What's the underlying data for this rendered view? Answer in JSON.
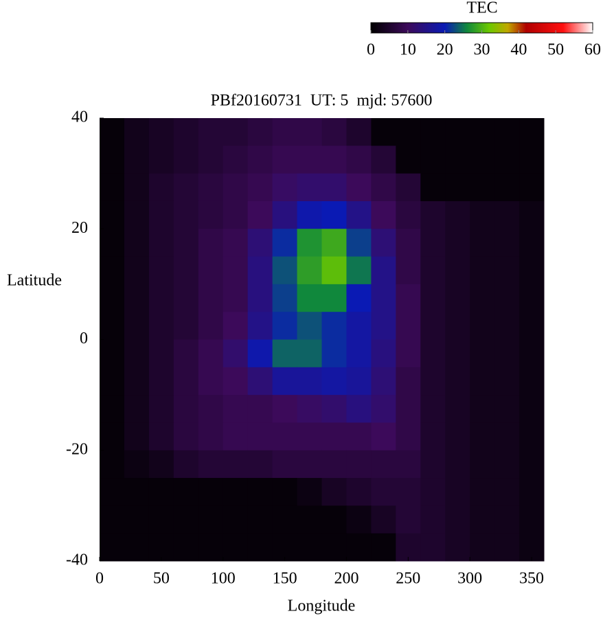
{
  "chart_data": {
    "type": "heatmap",
    "title": "PBf20160731  UT: 5  mjd: 57600",
    "xlabel": "Longitude",
    "ylabel": "Latitude",
    "x": [
      10,
      30,
      50,
      70,
      90,
      110,
      130,
      150,
      170,
      190,
      210,
      230,
      250,
      270,
      290,
      310,
      330,
      350
    ],
    "y": [
      37.5,
      32.5,
      27.5,
      22.5,
      17.5,
      12.5,
      7.5,
      2.5,
      -2.5,
      -7.5,
      -12.5,
      -17.5,
      -22.5,
      -27.5,
      -32.5,
      -37.5
    ],
    "values": [
      [
        1,
        3,
        4,
        5,
        6,
        6,
        7,
        8,
        8,
        7,
        5,
        1,
        1,
        1,
        1,
        1,
        1,
        1
      ],
      [
        1,
        3,
        4,
        5,
        6,
        7,
        8,
        9,
        9,
        9,
        8,
        6,
        1,
        1,
        1,
        1,
        1,
        1
      ],
      [
        1,
        3,
        5,
        6,
        7,
        8,
        9,
        11,
        12,
        12,
        10,
        8,
        6,
        1,
        1,
        1,
        1,
        1
      ],
      [
        1,
        3,
        5,
        6,
        7,
        8,
        10,
        14,
        19,
        20,
        15,
        10,
        7,
        5,
        4,
        3,
        3,
        2
      ],
      [
        1,
        3,
        5,
        6,
        8,
        9,
        13,
        21,
        27,
        29,
        22,
        13,
        8,
        5,
        4,
        3,
        3,
        2
      ],
      [
        1,
        3,
        5,
        6,
        8,
        9,
        14,
        23,
        28,
        31,
        25,
        15,
        8,
        5,
        4,
        3,
        3,
        2
      ],
      [
        1,
        3,
        5,
        6,
        8,
        9,
        14,
        22,
        26,
        26,
        20,
        15,
        9,
        5,
        4,
        3,
        3,
        2
      ],
      [
        1,
        3,
        5,
        6,
        8,
        10,
        15,
        21,
        23,
        21,
        18,
        15,
        9,
        5,
        4,
        3,
        3,
        2
      ],
      [
        1,
        3,
        5,
        7,
        9,
        12,
        19,
        24,
        24,
        21,
        18,
        14,
        9,
        5,
        4,
        3,
        3,
        2
      ],
      [
        1,
        3,
        5,
        7,
        9,
        10,
        13,
        17,
        17,
        18,
        17,
        13,
        8,
        5,
        4,
        3,
        3,
        2
      ],
      [
        1,
        3,
        5,
        7,
        8,
        9,
        9,
        10,
        11,
        12,
        14,
        12,
        8,
        5,
        4,
        3,
        3,
        2
      ],
      [
        1,
        3,
        5,
        7,
        8,
        9,
        9,
        9,
        9,
        9,
        9,
        10,
        8,
        5,
        4,
        3,
        3,
        2
      ],
      [
        1,
        2,
        3,
        5,
        6,
        6,
        6,
        7,
        7,
        7,
        7,
        7,
        7,
        5,
        4,
        3,
        3,
        2
      ],
      [
        1,
        1,
        1,
        1,
        1,
        1,
        1,
        1,
        2,
        4,
        5,
        6,
        6,
        5,
        4,
        3,
        3,
        2
      ],
      [
        1,
        1,
        1,
        1,
        1,
        1,
        1,
        1,
        1,
        1,
        2,
        4,
        6,
        5,
        4,
        3,
        3,
        2
      ],
      [
        1,
        1,
        1,
        1,
        1,
        1,
        1,
        1,
        1,
        1,
        1,
        1,
        5,
        5,
        4,
        3,
        3,
        2
      ]
    ],
    "xlim": [
      0,
      360
    ],
    "ylim": [
      -40,
      40
    ],
    "xticks": [
      0,
      50,
      100,
      150,
      200,
      250,
      300,
      350
    ],
    "yticks": [
      -40,
      -20,
      0,
      20,
      40
    ],
    "colorbar": {
      "label": "TEC",
      "lim": [
        0,
        60
      ],
      "ticks": [
        0,
        10,
        20,
        30,
        40,
        50,
        60
      ]
    },
    "colormap": [
      {
        "value": 0,
        "color": "#000000"
      },
      {
        "value": 10,
        "color": "#3c0a5a"
      },
      {
        "value": 20,
        "color": "#0a1ab4"
      },
      {
        "value": 26,
        "color": "#10883c"
      },
      {
        "value": 32,
        "color": "#6cc800"
      },
      {
        "value": 37,
        "color": "#c0a800"
      },
      {
        "value": 42,
        "color": "#b00000"
      },
      {
        "value": 52,
        "color": "#ff1010"
      },
      {
        "value": 60,
        "color": "#ffffff"
      }
    ]
  }
}
